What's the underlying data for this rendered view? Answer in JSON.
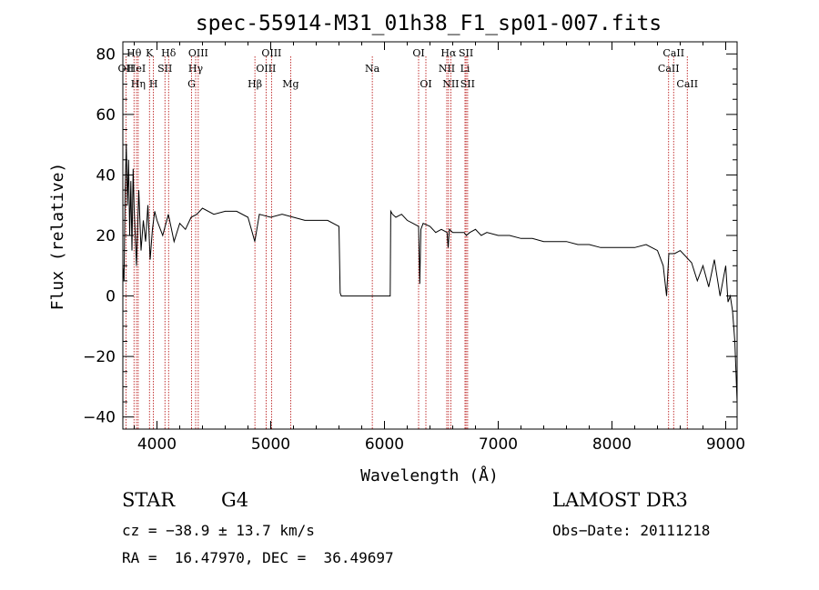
{
  "chart_data": {
    "type": "line",
    "title": "spec-55914-M31_01h38_F1_sp01-007.fits",
    "xlabel": "Wavelength (Å)",
    "ylabel": "Flux (relative)",
    "xlim": [
      3700,
      9100
    ],
    "ylim": [
      -44,
      84
    ],
    "x_ticks": [
      4000,
      5000,
      6000,
      7000,
      8000,
      9000
    ],
    "y_ticks": [
      -40,
      -20,
      0,
      20,
      40,
      60,
      80
    ],
    "grid": false,
    "series": [
      {
        "x": [
          3700,
          3710,
          3720,
          3730,
          3740,
          3750,
          3760,
          3770,
          3780,
          3790,
          3800,
          3820,
          3840,
          3860,
          3880,
          3900,
          3920,
          3940,
          3960,
          3980,
          4000,
          4050,
          4100,
          4150,
          4200,
          4250,
          4300,
          4350,
          4400,
          4500,
          4600,
          4700,
          4800,
          4860,
          4900,
          5000,
          5100,
          5200,
          5300,
          5400,
          5500,
          5600,
          5610,
          5620,
          6050,
          6055,
          6070,
          6100,
          6150,
          6200,
          6250,
          6300,
          6310,
          6320,
          6340,
          6400,
          6450,
          6500,
          6550,
          6560,
          6570,
          6600,
          6650,
          6700,
          6720,
          6750,
          6800,
          6850,
          6900,
          7000,
          7100,
          7200,
          7300,
          7400,
          7500,
          7600,
          7700,
          7800,
          7900,
          8000,
          8100,
          8200,
          8300,
          8400,
          8450,
          8480,
          8500,
          8520,
          8550,
          8600,
          8650,
          8700,
          8750,
          8800,
          8850,
          8900,
          8950,
          9000,
          9020,
          9040,
          9060,
          9080,
          9100
        ],
        "y": [
          10,
          5,
          35,
          50,
          30,
          45,
          20,
          38,
          15,
          42,
          28,
          10,
          35,
          15,
          25,
          18,
          30,
          12,
          22,
          28,
          25,
          20,
          27,
          18,
          24,
          22,
          26,
          27,
          29,
          27,
          28,
          28,
          26,
          18,
          27,
          26,
          27,
          26,
          25,
          25,
          25,
          23,
          1,
          0,
          0,
          28,
          27,
          26,
          27,
          25,
          24,
          23,
          4,
          22,
          24,
          23,
          21,
          22,
          21,
          16,
          22,
          21,
          21,
          21,
          20,
          21,
          22,
          20,
          21,
          20,
          20,
          19,
          19,
          18,
          18,
          18,
          17,
          17,
          16,
          16,
          16,
          16,
          17,
          15,
          10,
          0,
          14,
          14,
          14,
          15,
          13,
          11,
          5,
          10,
          3,
          12,
          0,
          10,
          -2,
          0,
          -5,
          -15,
          -35
        ]
      }
    ],
    "line_markers": [
      {
        "label": "OII",
        "x": 3727,
        "row": 1
      },
      {
        "label": "Hθ",
        "x": 3798,
        "row": 0
      },
      {
        "label": "HeI",
        "x": 3820,
        "row": 1
      },
      {
        "label": "Hη",
        "x": 3835,
        "row": 2
      },
      {
        "label": "K",
        "x": 3934,
        "row": 0
      },
      {
        "label": "SII",
        "x": 4070,
        "row": 1
      },
      {
        "label": "H",
        "x": 3969,
        "row": 2
      },
      {
        "label": "Hδ",
        "x": 4102,
        "row": 0
      },
      {
        "label": "OIII",
        "x": 4363,
        "row": 0
      },
      {
        "label": "Hγ",
        "x": 4340,
        "row": 1
      },
      {
        "label": "G",
        "x": 4304,
        "row": 2
      },
      {
        "label": "OIII",
        "x": 5007,
        "row": 0
      },
      {
        "label": "OIII",
        "x": 4959,
        "row": 1
      },
      {
        "label": "Hβ",
        "x": 4861,
        "row": 2
      },
      {
        "label": "Mg",
        "x": 5175,
        "row": 2
      },
      {
        "label": "Na",
        "x": 5893,
        "row": 1
      },
      {
        "label": "OI",
        "x": 6300,
        "row": 0
      },
      {
        "label": "OI",
        "x": 6364,
        "row": 2
      },
      {
        "label": "Hα",
        "x": 6563,
        "row": 0
      },
      {
        "label": "NII",
        "x": 6548,
        "row": 1
      },
      {
        "label": "NII",
        "x": 6583,
        "row": 2
      },
      {
        "label": "SII",
        "x": 6717,
        "row": 0
      },
      {
        "label": "Li",
        "x": 6708,
        "row": 1
      },
      {
        "label": "SII",
        "x": 6731,
        "row": 2
      },
      {
        "label": "CaII",
        "x": 8542,
        "row": 0
      },
      {
        "label": "CaII",
        "x": 8498,
        "row": 1
      },
      {
        "label": "CaII",
        "x": 8662,
        "row": 2
      }
    ]
  },
  "info": {
    "object_class": "STAR",
    "subclass": "G4",
    "survey": "LAMOST DR3",
    "velocity": "cz = −38.9 ± 13.7 km/s",
    "obs_date": "Obs−Date: 20111218",
    "coords": "RA =  16.47970, DEC =  36.49697"
  },
  "colors": {
    "line": "#000000",
    "marker": "#b20000",
    "axes": "#000000"
  }
}
